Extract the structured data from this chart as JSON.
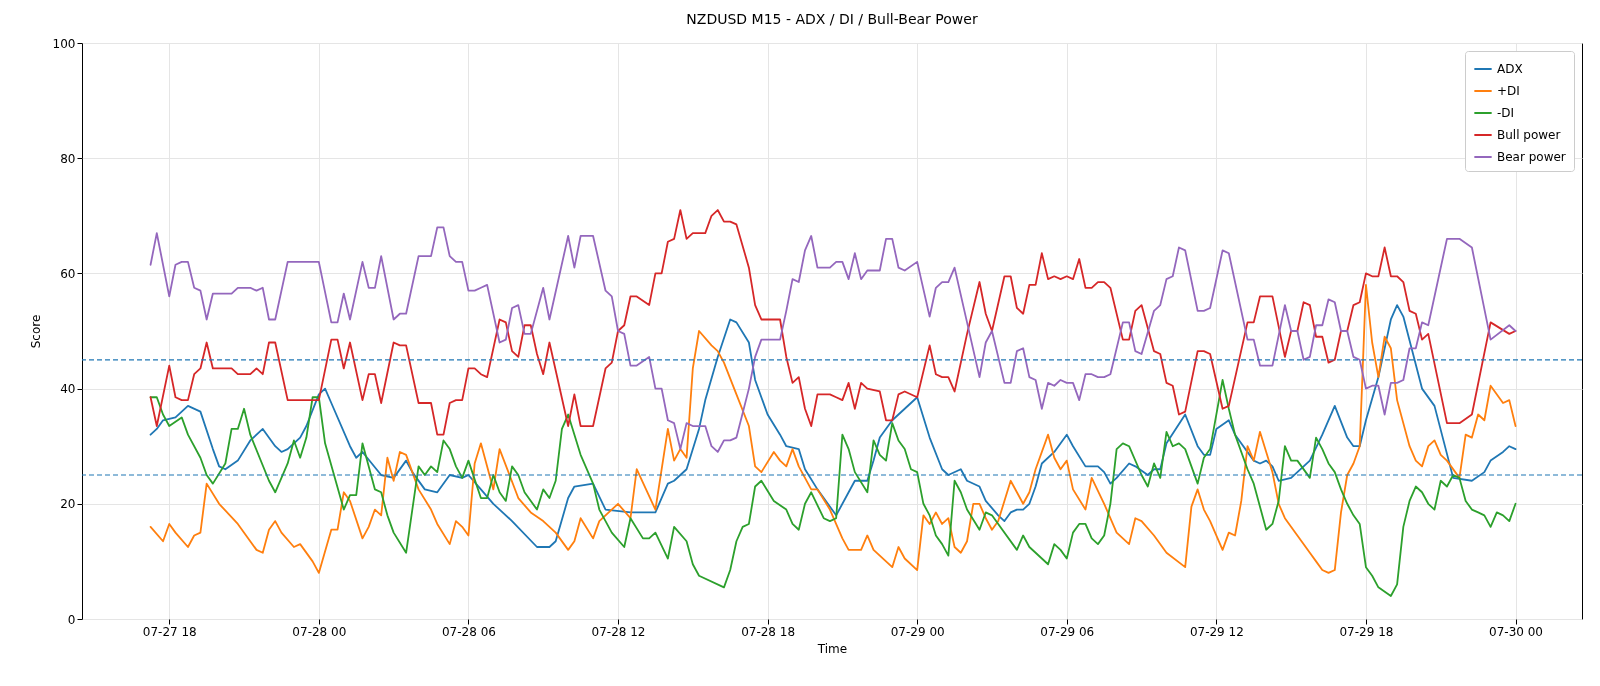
{
  "chart_data": {
    "type": "line",
    "title": "NZDUSD M15 - ADX / DI / Bull-Bear Power",
    "xlabel": "Time",
    "ylabel": "Score",
    "xlim": [
      "--07-27T14:30",
      "--07-30T02:40"
    ],
    "xticks": [
      {
        "value": "--07-27T18:00",
        "label": "07-27 18"
      },
      {
        "value": "--07-28T00:00",
        "label": "07-28 00"
      },
      {
        "value": "--07-28T06:00",
        "label": "07-28 06"
      },
      {
        "value": "--07-28T12:00",
        "label": "07-28 12"
      },
      {
        "value": "--07-28T18:00",
        "label": "07-28 18"
      },
      {
        "value": "--07-29T00:00",
        "label": "07-29 00"
      },
      {
        "value": "--07-29T06:00",
        "label": "07-29 06"
      },
      {
        "value": "--07-29T12:00",
        "label": "07-29 12"
      },
      {
        "value": "--07-29T18:00",
        "label": "07-29 18"
      },
      {
        "value": "--07-30T00:00",
        "label": "07-30 00"
      }
    ],
    "ylim": [
      0,
      100
    ],
    "yticks": [
      0,
      20,
      40,
      60,
      80,
      100
    ],
    "grid": true,
    "legend": "top right",
    "ref_lines": [
      {
        "axis": "y",
        "value": 45,
        "color": "#1f77b4",
        "line_style": "dashed"
      },
      {
        "axis": "y",
        "value": 25,
        "color": "#1f77b4",
        "line_style": "dashed"
      }
    ],
    "series": [
      {
        "name": "ADX",
        "color": "#1f77b4",
        "x": [
          "--07-27T17:15",
          "--07-27T17:30",
          "--07-27T17:45",
          "--07-27T18:15",
          "--07-27T18:45",
          "--07-27T19:15",
          "--07-27T19:45",
          "--07-27T20:00",
          "--07-27T20:15",
          "--07-27T20:45",
          "--07-27T21:15",
          "--07-27T21:45",
          "--07-27T22:15",
          "--07-27T22:30",
          "--07-27T22:45",
          "--07-27T23:15",
          "--07-27T23:30",
          "--07-28T00:00",
          "--07-28T00:15",
          "--07-28T00:30",
          "--07-28T01:15",
          "--07-28T01:30",
          "--07-28T01:45",
          "--07-28T02:30",
          "--07-28T03:00",
          "--07-28T03:30",
          "--07-28T03:45",
          "--07-28T04:15",
          "--07-28T04:45",
          "--07-28T05:15",
          "--07-28T05:45",
          "--07-28T06:00",
          "--07-28T06:30",
          "--07-28T07:00",
          "--07-28T07:15",
          "--07-28T07:45",
          "--07-28T08:45",
          "--07-28T09:15",
          "--07-28T09:30",
          "--07-28T10:00",
          "--07-28T10:15",
          "--07-28T11:00",
          "--07-28T11:30",
          "--07-28T12:30",
          "--07-28T13:00",
          "--07-28T13:30",
          "--07-28T14:00",
          "--07-28T14:15",
          "--07-28T14:45",
          "--07-28T15:15",
          "--07-28T15:30",
          "--07-28T16:00",
          "--07-28T16:30",
          "--07-28T16:45",
          "--07-28T17:15",
          "--07-28T17:30",
          "--07-28T18:00",
          "--07-28T18:30",
          "--07-28T18:45",
          "--07-28T19:15",
          "--07-28T19:30",
          "--07-28T20:00",
          "--07-28T20:45",
          "--07-28T21:15",
          "--07-28T21:30",
          "--07-28T22:00",
          "--07-28T22:15",
          "--07-28T22:30",
          "--07-28T23:00",
          "--07-28T23:30",
          "--07-29T00:00",
          "--07-29T00:30",
          "--07-29T01:00",
          "--07-29T01:15",
          "--07-29T01:45",
          "--07-29T02:00",
          "--07-29T02:30",
          "--07-29T02:45",
          "--07-29T03:15",
          "--07-29T03:30",
          "--07-29T03:45",
          "--07-29T04:00",
          "--07-29T04:15",
          "--07-29T04:30",
          "--07-29T04:45",
          "--07-29T05:00",
          "--07-29T05:30",
          "--07-29T06:00",
          "--07-29T06:15",
          "--07-29T06:45",
          "--07-29T07:15",
          "--07-29T07:30",
          "--07-29T07:45",
          "--07-29T08:00",
          "--07-29T08:30",
          "--07-29T08:45",
          "--07-29T09:15",
          "--07-29T09:30",
          "--07-29T09:45",
          "--07-29T10:00",
          "--07-29T10:45",
          "--07-29T11:15",
          "--07-29T11:30",
          "--07-29T11:45",
          "--07-29T12:00",
          "--07-29T12:30",
          "--07-29T12:45",
          "--07-29T13:30",
          "--07-29T13:45",
          "--07-29T14:00",
          "--07-29T14:15",
          "--07-29T14:30",
          "--07-29T15:00",
          "--07-29T15:15",
          "--07-29T15:45",
          "--07-29T16:15",
          "--07-29T16:45",
          "--07-29T17:15",
          "--07-29T17:30",
          "--07-29T17:45",
          "--07-29T18:00",
          "--07-29T18:30",
          "--07-29T19:00",
          "--07-29T19:15",
          "--07-29T19:30",
          "--07-29T20:15",
          "--07-29T20:45",
          "--07-29T21:30",
          "--07-29T22:15",
          "--07-29T22:45",
          "--07-29T23:00",
          "--07-29T23:30",
          "--07-29T23:45",
          "--07-30T00:00"
        ],
        "values": [
          32,
          33,
          34.5,
          35,
          37,
          36,
          29.5,
          26.5,
          26,
          27.5,
          31,
          33,
          30,
          29,
          29.5,
          31.5,
          33.5,
          39,
          40,
          37.5,
          30,
          28,
          29,
          25,
          24.5,
          27.5,
          25.5,
          22.5,
          22,
          25,
          24.5,
          25,
          22.5,
          20,
          19,
          17,
          12.5,
          12.5,
          13.5,
          21,
          23,
          23.5,
          19,
          18.5,
          18.5,
          18.5,
          23.5,
          24,
          26,
          33,
          38,
          45.5,
          52,
          51.5,
          48,
          41.5,
          35.5,
          32,
          30,
          29.5,
          26,
          22.5,
          18,
          22,
          24,
          24,
          27.5,
          31.5,
          34.5,
          36.5,
          38.5,
          31.5,
          26,
          25,
          26,
          24,
          23,
          20.5,
          18,
          17,
          18.5,
          19,
          19,
          20,
          23,
          27,
          29,
          32,
          30,
          26.5,
          26.5,
          25.5,
          23.5,
          24.5,
          27,
          26.5,
          25,
          26,
          26,
          30.5,
          35.5,
          30,
          28.5,
          28.5,
          33,
          34.5,
          32,
          27.5,
          27,
          27.5,
          26.5,
          24,
          24.5,
          25.5,
          27.5,
          32,
          37,
          31.5,
          30,
          30,
          34.5,
          42,
          52,
          54.5,
          52.5,
          40,
          37,
          24.5,
          24,
          25.5,
          27.5,
          29,
          30,
          29.5
        ]
      },
      {
        "name": "+DI",
        "color": "#ff7f0e",
        "x": [
          "--07-27T17:15",
          "--07-27T17:45",
          "--07-27T18:00",
          "--07-27T18:15",
          "--07-27T18:45",
          "--07-27T19:00",
          "--07-27T19:15",
          "--07-27T19:30",
          "--07-27T20:00",
          "--07-27T20:45",
          "--07-27T21:30",
          "--07-27T21:45",
          "--07-27T22:00",
          "--07-27T22:15",
          "--07-27T22:30",
          "--07-27T23:00",
          "--07-27T23:15",
          "--07-27T23:45",
          "--07-28T00:00",
          "--07-28T00:30",
          "--07-28T00:45",
          "--07-28T01:00",
          "--07-28T01:15",
          "--07-28T01:45",
          "--07-28T02:00",
          "--07-28T02:15",
          "--07-28T02:30",
          "--07-28T02:45",
          "--07-28T03:00",
          "--07-28T03:15",
          "--07-28T03:30",
          "--07-28T04:00",
          "--07-28T04:30",
          "--07-28T04:45",
          "--07-28T05:15",
          "--07-28T05:30",
          "--07-28T05:45",
          "--07-28T06:00",
          "--07-28T06:15",
          "--07-28T06:30",
          "--07-28T07:00",
          "--07-28T07:15",
          "--07-28T08:00",
          "--07-28T08:30",
          "--07-28T09:00",
          "--07-28T09:30",
          "--07-28T10:00",
          "--07-28T10:15",
          "--07-28T10:30",
          "--07-28T11:00",
          "--07-28T11:15",
          "--07-28T12:00",
          "--07-28T12:30",
          "--07-28T12:45",
          "--07-28T13:30",
          "--07-28T14:00",
          "--07-28T14:15",
          "--07-28T14:30",
          "--07-28T14:45",
          "--07-28T15:00",
          "--07-28T15:15",
          "--07-28T15:45",
          "--07-28T16:00",
          "--07-28T16:15",
          "--07-28T16:45",
          "--07-28T17:15",
          "--07-28T17:30",
          "--07-28T17:45",
          "--07-28T18:15",
          "--07-28T18:30",
          "--07-28T18:45",
          "--07-28T19:00",
          "--07-28T19:15",
          "--07-28T19:45",
          "--07-28T20:00",
          "--07-28T20:30",
          "--07-28T21:00",
          "--07-28T21:15",
          "--07-28T21:45",
          "--07-28T22:00",
          "--07-28T22:15",
          "--07-28T22:30",
          "--07-28T22:45",
          "--07-28T23:00",
          "--07-28T23:15",
          "--07-28T23:30",
          "--07-29T00:00",
          "--07-29T00:15",
          "--07-29T00:30",
          "--07-29T00:45",
          "--07-29T01:00",
          "--07-29T01:15",
          "--07-29T01:30",
          "--07-29T01:45",
          "--07-29T02:00",
          "--07-29T02:15",
          "--07-29T02:30",
          "--07-29T02:45",
          "--07-29T03:00",
          "--07-29T03:15",
          "--07-29T03:45",
          "--07-29T04:00",
          "--07-29T04:15",
          "--07-29T04:30",
          "--07-29T04:45",
          "--07-29T05:15",
          "--07-29T05:30",
          "--07-29T05:45",
          "--07-29T06:00",
          "--07-29T06:15",
          "--07-29T06:45",
          "--07-29T07:00",
          "--07-29T07:30",
          "--07-29T08:00",
          "--07-29T08:30",
          "--07-29T08:45",
          "--07-29T09:00",
          "--07-29T09:30",
          "--07-29T10:00",
          "--07-29T10:45",
          "--07-29T11:00",
          "--07-29T11:15",
          "--07-29T11:30",
          "--07-29T11:45",
          "--07-29T12:15",
          "--07-29T12:30",
          "--07-29T12:45",
          "--07-29T13:00",
          "--07-29T13:15",
          "--07-29T13:30",
          "--07-29T13:45",
          "--07-29T14:00",
          "--07-29T14:15",
          "--07-29T14:30",
          "--07-29T14:45",
          "--07-29T15:15",
          "--07-29T15:45",
          "--07-29T16:00",
          "--07-29T16:15",
          "--07-29T16:30",
          "--07-29T16:45",
          "--07-29T17:00",
          "--07-29T17:15",
          "--07-29T17:30",
          "--07-29T17:45",
          "--07-29T18:00",
          "--07-29T18:15",
          "--07-29T18:30",
          "--07-29T18:45",
          "--07-29T19:00",
          "--07-29T19:15",
          "--07-29T19:45",
          "--07-29T20:00",
          "--07-29T20:15",
          "--07-29T20:30",
          "--07-29T20:45",
          "--07-29T21:00",
          "--07-29T21:15",
          "--07-29T21:45",
          "--07-29T22:00",
          "--07-29T22:15",
          "--07-29T22:30",
          "--07-29T22:45",
          "--07-29T23:00",
          "--07-29T23:30",
          "--07-29T23:45",
          "--07-30T00:00"
        ],
        "values": [
          16,
          13.5,
          16.5,
          15,
          12.5,
          14.5,
          15,
          23.5,
          20,
          16.5,
          12,
          11.5,
          15.5,
          17,
          15,
          12.5,
          13,
          10,
          8,
          15.5,
          15.5,
          22,
          20.5,
          14,
          16,
          19,
          18,
          28,
          24,
          29,
          28.5,
          22.5,
          19,
          16.5,
          13,
          17,
          16,
          14.5,
          27,
          30.5,
          22.5,
          29.5,
          21,
          18.5,
          17,
          15,
          12,
          13.5,
          17.5,
          14,
          17,
          20,
          17.5,
          26,
          19,
          33,
          27.5,
          29.5,
          28,
          43.5,
          50,
          47.5,
          46.5,
          44.5,
          39,
          33.5,
          26.5,
          25.5,
          29,
          27.5,
          26.5,
          29.5,
          26.5,
          22.5,
          22.5,
          19,
          14,
          12,
          12,
          14.5,
          12,
          11,
          10,
          9,
          12.5,
          10.5,
          8.5,
          18,
          16.5,
          18.5,
          16.5,
          17.5,
          12.5,
          11.5,
          13.5,
          20,
          20,
          17.5,
          15.5,
          17,
          24,
          22,
          20,
          22,
          26,
          32,
          28,
          26,
          27.5,
          22.5,
          19,
          24.5,
          20,
          15,
          13,
          17.5,
          17,
          14.5,
          11.5,
          9,
          19.5,
          22.5,
          19,
          17,
          12,
          15,
          14.5,
          20.5,
          30,
          27.5,
          32.5,
          29,
          25.5,
          20,
          17.5,
          14.5,
          11.5,
          10,
          8.5,
          8,
          8.5,
          18.5,
          25,
          27,
          30,
          58,
          48,
          42,
          49,
          47,
          38,
          30,
          27.5,
          26.5,
          30,
          31,
          28.5,
          27.5,
          24.5,
          32,
          31.5,
          35.5,
          34.5,
          40.5,
          37.5,
          38,
          33.5
        ]
      },
      {
        "name": "-DI",
        "color": "#2ca02c",
        "x": [
          "--07-27T17:15",
          "--07-27T17:30",
          "--07-27T17:45",
          "--07-27T18:00",
          "--07-27T18:30",
          "--07-27T18:45",
          "--07-27T19:15",
          "--07-27T19:30",
          "--07-27T19:45",
          "--07-27T20:15",
          "--07-27T20:30",
          "--07-27T20:45",
          "--07-27T21:00",
          "--07-27T21:15",
          "--07-27T22:00",
          "--07-27T22:15",
          "--07-27T22:45",
          "--07-27T23:00",
          "--07-27T23:15",
          "--07-27T23:30",
          "--07-27T23:45",
          "--07-28T00:00",
          "--07-28T00:15",
          "--07-28T01:00",
          "--07-28T01:15",
          "--07-28T01:30",
          "--07-28T01:45",
          "--07-28T02:15",
          "--07-28T02:30",
          "--07-28T02:45",
          "--07-28T03:00",
          "--07-28T03:30",
          "--07-28T04:00",
          "--07-28T04:15",
          "--07-28T04:30",
          "--07-28T04:45",
          "--07-28T05:00",
          "--07-28T05:15",
          "--07-28T05:30",
          "--07-28T05:45",
          "--07-28T06:00",
          "--07-28T06:30",
          "--07-28T06:45",
          "--07-28T07:00",
          "--07-28T07:15",
          "--07-28T07:30",
          "--07-28T07:45",
          "--07-28T08:00",
          "--07-28T08:15",
          "--07-28T08:45",
          "--07-28T09:00",
          "--07-28T09:15",
          "--07-28T09:30",
          "--07-28T09:45",
          "--07-28T10:00",
          "--07-28T10:30",
          "--07-28T11:00",
          "--07-28T11:15",
          "--07-28T11:45",
          "--07-28T12:15",
          "--07-28T12:30",
          "--07-28T13:00",
          "--07-28T13:15",
          "--07-28T13:30",
          "--07-28T14:00",
          "--07-28T14:15",
          "--07-28T14:45",
          "--07-28T15:00",
          "--07-28T15:15",
          "--07-28T16:15",
          "--07-28T16:30",
          "--07-28T16:45",
          "--07-28T17:00",
          "--07-28T17:15",
          "--07-28T17:30",
          "--07-28T17:45",
          "--07-28T18:15",
          "--07-28T18:45",
          "--07-28T19:00",
          "--07-28T19:15",
          "--07-28T19:30",
          "--07-28T19:45",
          "--07-28T20:15",
          "--07-28T20:30",
          "--07-28T20:45",
          "--07-28T21:00",
          "--07-28T21:15",
          "--07-28T21:30",
          "--07-28T22:00",
          "--07-28T22:15",
          "--07-28T22:30",
          "--07-28T22:45",
          "--07-28T23:00",
          "--07-28T23:15",
          "--07-28T23:30",
          "--07-28T23:45",
          "--07-29T00:00",
          "--07-29T00:15",
          "--07-29T00:30",
          "--07-29T00:45",
          "--07-29T01:00",
          "--07-29T01:15",
          "--07-29T01:30",
          "--07-29T01:45",
          "--07-29T02:00",
          "--07-29T02:30",
          "--07-29T02:45",
          "--07-29T03:00",
          "--07-29T03:15",
          "--07-29T04:00",
          "--07-29T04:15",
          "--07-29T04:30",
          "--07-29T05:15",
          "--07-29T05:30",
          "--07-29T05:45",
          "--07-29T06:00",
          "--07-29T06:15",
          "--07-29T06:30",
          "--07-29T06:45",
          "--07-29T07:00",
          "--07-29T07:15",
          "--07-29T07:30",
          "--07-29T07:45",
          "--07-29T08:00",
          "--07-29T08:15",
          "--07-29T08:30",
          "--07-29T09:00",
          "--07-29T09:15",
          "--07-29T09:30",
          "--07-29T09:45",
          "--07-29T10:00",
          "--07-29T10:15",
          "--07-29T10:30",
          "--07-29T10:45",
          "--07-29T11:15",
          "--07-29T11:30",
          "--07-29T11:45",
          "--07-29T12:15",
          "--07-29T12:30",
          "--07-29T12:45",
          "--07-29T13:15",
          "--07-29T13:30",
          "--07-29T14:00",
          "--07-29T14:15",
          "--07-29T14:30",
          "--07-29T14:45",
          "--07-29T15:00",
          "--07-29T15:15",
          "--07-29T15:45",
          "--07-29T16:00",
          "--07-29T16:15",
          "--07-29T16:30",
          "--07-29T16:45",
          "--07-29T17:00",
          "--07-29T17:15",
          "--07-29T17:30",
          "--07-29T17:45",
          "--07-29T18:00",
          "--07-29T18:15",
          "--07-29T18:30",
          "--07-29T19:00",
          "--07-29T19:15",
          "--07-29T19:30",
          "--07-29T19:45",
          "--07-29T20:00",
          "--07-29T20:15",
          "--07-29T20:30",
          "--07-29T20:45",
          "--07-29T21:00",
          "--07-29T21:15",
          "--07-29T21:30",
          "--07-29T21:45",
          "--07-29T22:00",
          "--07-29T22:15",
          "--07-29T22:30",
          "--07-29T22:45",
          "--07-29T23:00",
          "--07-29T23:15",
          "--07-29T23:30",
          "--07-29T23:45",
          "--07-30T00:00"
        ],
        "values": [
          38.5,
          38.5,
          35.5,
          33.5,
          35,
          32,
          28,
          25,
          23.5,
          27,
          33,
          33,
          36.5,
          32,
          24,
          22,
          27,
          31,
          28,
          31.5,
          38.5,
          38.5,
          30.5,
          19,
          21.5,
          21.5,
          30.5,
          22.5,
          22,
          18,
          15,
          11.5,
          26.5,
          25,
          26.5,
          25.5,
          31,
          29.5,
          26.5,
          24.5,
          27.5,
          21,
          21,
          25,
          22,
          20.5,
          26.5,
          25,
          22,
          19,
          22.5,
          21,
          24,
          33,
          35.5,
          28.5,
          23.5,
          19,
          15,
          12.5,
          17.5,
          14,
          14,
          15,
          10.5,
          16,
          13.5,
          9.5,
          7.5,
          5.5,
          8.5,
          13.5,
          16,
          16.5,
          23,
          24,
          20.5,
          19,
          16.5,
          15.5,
          20,
          22,
          17.5,
          17,
          17.5,
          32,
          29.5,
          25.5,
          22,
          31,
          28.5,
          27.5,
          34,
          31,
          29.5,
          26,
          25.5,
          20,
          18,
          14.5,
          13,
          11,
          24,
          22,
          19,
          15.5,
          18.5,
          18,
          16.5,
          12,
          14.5,
          12.5,
          9.5,
          13,
          12,
          10.5,
          15,
          16.5,
          16.5,
          14,
          13,
          14.5,
          20,
          29.5,
          30.5,
          30,
          25,
          23,
          27,
          24.5,
          32.5,
          30,
          30.5,
          29.5,
          23.5,
          28,
          29.5,
          41.5,
          36.5,
          32,
          26,
          23.5,
          15.5,
          16.5,
          20.5,
          30,
          27.5,
          27.5,
          24.5,
          31.5,
          29.5,
          27,
          25.5,
          22.5,
          20,
          18,
          16.5,
          9,
          7.5,
          5.5,
          4,
          6,
          16,
          20.5,
          23,
          22,
          20,
          19,
          24,
          23,
          25,
          24.5,
          20.5,
          19,
          18.5,
          18,
          16,
          18.5,
          18,
          17,
          20
        ]
      },
      {
        "name": "Bull power",
        "color": "#d62728",
        "x": [
          "--07-27T17:15",
          "--07-27T17:30",
          "--07-27T18:00",
          "--07-27T18:15",
          "--07-27T18:30",
          "--07-27T18:45",
          "--07-27T19:00",
          "--07-27T19:15",
          "--07-27T19:30",
          "--07-27T19:45",
          "--07-27T20:30",
          "--07-27T20:45",
          "--07-27T21:15",
          "--07-27T21:30",
          "--07-27T21:45",
          "--07-27T22:00",
          "--07-27T22:15",
          "--07-27T22:45",
          "--07-28T00:00",
          "--07-28T00:30",
          "--07-28T00:45",
          "--07-28T01:00",
          "--07-28T01:15",
          "--07-28T01:45",
          "--07-28T02:00",
          "--07-28T02:15",
          "--07-28T02:30",
          "--07-28T03:00",
          "--07-28T03:15",
          "--07-28T03:30",
          "--07-28T04:00",
          "--07-28T04:30",
          "--07-28T04:45",
          "--07-28T05:00",
          "--07-28T05:15",
          "--07-28T05:30",
          "--07-28T05:45",
          "--07-28T06:00",
          "--07-28T06:15",
          "--07-28T06:30",
          "--07-28T06:45",
          "--07-28T07:15",
          "--07-28T07:30",
          "--07-28T07:45",
          "--07-28T08:00",
          "--07-28T08:15",
          "--07-28T08:30",
          "--07-28T08:45",
          "--07-28T09:00",
          "--07-28T09:15",
          "--07-28T10:00",
          "--07-28T10:15",
          "--07-28T10:30",
          "--07-28T11:00",
          "--07-28T11:30",
          "--07-28T11:45",
          "--07-28T12:00",
          "--07-28T12:15",
          "--07-28T12:30",
          "--07-28T12:45",
          "--07-28T13:15",
          "--07-28T13:30",
          "--07-28T13:45",
          "--07-28T14:00",
          "--07-28T14:15",
          "--07-28T14:30",
          "--07-28T14:45",
          "--07-28T15:00",
          "--07-28T15:30",
          "--07-28T15:45",
          "--07-28T16:00",
          "--07-28T16:15",
          "--07-28T16:30",
          "--07-28T16:45",
          "--07-28T17:15",
          "--07-28T17:30",
          "--07-28T17:45",
          "--07-28T18:30",
          "--07-28T18:45",
          "--07-28T19:00",
          "--07-28T19:15",
          "--07-28T19:30",
          "--07-28T19:45",
          "--07-28T20:00",
          "--07-28T20:30",
          "--07-28T20:45",
          "--07-28T21:00",
          "--07-28T21:15",
          "--07-28T21:30",
          "--07-28T21:45",
          "--07-28T22:00",
          "--07-28T22:30",
          "--07-28T22:45",
          "--07-28T23:00",
          "--07-28T23:15",
          "--07-28T23:30",
          "--07-29T00:00",
          "--07-29T00:30",
          "--07-29T00:45",
          "--07-29T01:00",
          "--07-29T01:15",
          "--07-29T01:30",
          "--07-29T02:00",
          "--07-29T02:30",
          "--07-29T02:45",
          "--07-29T03:00",
          "--07-29T03:30",
          "--07-29T03:45",
          "--07-29T04:00",
          "--07-29T04:15",
          "--07-29T04:30",
          "--07-29T04:45",
          "--07-29T05:00",
          "--07-29T05:15",
          "--07-29T05:30",
          "--07-29T05:45",
          "--07-29T06:00",
          "--07-29T06:15",
          "--07-29T06:30",
          "--07-29T06:45",
          "--07-29T07:00",
          "--07-29T07:15",
          "--07-29T07:30",
          "--07-29T07:45",
          "--07-29T08:15",
          "--07-29T08:30",
          "--07-29T08:45",
          "--07-29T09:00",
          "--07-29T09:30",
          "--07-29T09:45",
          "--07-29T10:00",
          "--07-29T10:15",
          "--07-29T10:30",
          "--07-29T10:45",
          "--07-29T11:15",
          "--07-29T11:30",
          "--07-29T11:45",
          "--07-29T12:15",
          "--07-29T12:30",
          "--07-29T13:15",
          "--07-29T13:30",
          "--07-29T13:45",
          "--07-29T14:15",
          "--07-29T14:45",
          "--07-29T15:00",
          "--07-29T15:15",
          "--07-29T15:30",
          "--07-29T15:45",
          "--07-29T16:00",
          "--07-29T16:15",
          "--07-29T16:30",
          "--07-29T16:45",
          "--07-29T17:00",
          "--07-29T17:15",
          "--07-29T17:30",
          "--07-29T17:45",
          "--07-29T18:00",
          "--07-29T18:15",
          "--07-29T18:30",
          "--07-29T18:45",
          "--07-29T19:00",
          "--07-29T19:15",
          "--07-29T19:30",
          "--07-29T19:45",
          "--07-29T20:00",
          "--07-29T20:15",
          "--07-29T20:30",
          "--07-29T21:15",
          "--07-29T21:45",
          "--07-29T22:15",
          "--07-29T23:00",
          "--07-29T23:45",
          "--07-30T00:00"
        ],
        "values": [
          38.5,
          33.5,
          44,
          38.5,
          38,
          38,
          42.5,
          43.5,
          48,
          43.5,
          43.5,
          42.5,
          42.5,
          43.5,
          42.5,
          48,
          48,
          38,
          38,
          48.5,
          48.5,
          43.5,
          48,
          38,
          42.5,
          42.5,
          37.5,
          48,
          47.5,
          47.5,
          37.5,
          37.5,
          32,
          32,
          37.5,
          38,
          38,
          43.5,
          43.5,
          42.5,
          42,
          52,
          51.5,
          46.5,
          45.5,
          51,
          51,
          46,
          42.5,
          48,
          33.5,
          39,
          33.5,
          33.5,
          43.5,
          44.5,
          50,
          51,
          56,
          56,
          54.5,
          60,
          60,
          65.5,
          66,
          71,
          66,
          67,
          67,
          70,
          71,
          69,
          69,
          68.5,
          61,
          54.5,
          52,
          52,
          45.5,
          41,
          42,
          36.5,
          33.5,
          39,
          39,
          38.5,
          38,
          41,
          36.5,
          41,
          40,
          39.5,
          34.5,
          34.5,
          39,
          39.5,
          38.5,
          47.5,
          42.5,
          42,
          42,
          39.5,
          49.5,
          58.5,
          53,
          50,
          59.5,
          59.5,
          54,
          53,
          58,
          58,
          63.5,
          59,
          59.5,
          59,
          59.5,
          59,
          62.5,
          57.5,
          57.5,
          58.5,
          58.5,
          57.5,
          48.5,
          48.5,
          53.5,
          54.5,
          46.5,
          46,
          41,
          40.5,
          35.5,
          36,
          46.5,
          46.5,
          46,
          36.5,
          37,
          51.5,
          51.5,
          56,
          56,
          45.5,
          50,
          50,
          55,
          54.5,
          49,
          49,
          44.5,
          45,
          50,
          50,
          54.5,
          55,
          60,
          59.5,
          59.5,
          64.5,
          59.5,
          59.5,
          58.5,
          53.5,
          53,
          48.5,
          49.5,
          34,
          34,
          35.5,
          51.5,
          49.5,
          50
        ]
      },
      {
        "name": "Bear power",
        "color": "#9467bd",
        "x": [
          "--07-27T17:15",
          "--07-27T17:30",
          "--07-27T18:00",
          "--07-27T18:15",
          "--07-27T18:30",
          "--07-27T18:45",
          "--07-27T19:00",
          "--07-27T19:15",
          "--07-27T19:30",
          "--07-27T19:45",
          "--07-27T20:30",
          "--07-27T20:45",
          "--07-27T21:15",
          "--07-27T21:30",
          "--07-27T21:45",
          "--07-27T22:00",
          "--07-27T22:15",
          "--07-27T22:45",
          "--07-28T00:00",
          "--07-28T00:30",
          "--07-28T00:45",
          "--07-28T01:00",
          "--07-28T01:15",
          "--07-28T01:45",
          "--07-28T02:00",
          "--07-28T02:15",
          "--07-28T02:30",
          "--07-28T03:00",
          "--07-28T03:15",
          "--07-28T03:30",
          "--07-28T04:00",
          "--07-28T04:30",
          "--07-28T04:45",
          "--07-28T05:00",
          "--07-28T05:15",
          "--07-28T05:30",
          "--07-28T05:45",
          "--07-28T06:00",
          "--07-28T06:15",
          "--07-28T06:30",
          "--07-28T06:45",
          "--07-28T07:15",
          "--07-28T07:30",
          "--07-28T07:45",
          "--07-28T08:00",
          "--07-28T08:15",
          "--07-28T08:30",
          "--07-28T09:00",
          "--07-28T09:15",
          "--07-28T10:00",
          "--07-28T10:15",
          "--07-28T10:30",
          "--07-28T11:00",
          "--07-28T11:30",
          "--07-28T11:45",
          "--07-28T12:00",
          "--07-28T12:15",
          "--07-28T12:30",
          "--07-28T12:45",
          "--07-28T13:15",
          "--07-28T13:30",
          "--07-28T13:45",
          "--07-28T14:00",
          "--07-28T14:15",
          "--07-28T14:30",
          "--07-28T14:45",
          "--07-28T15:00",
          "--07-28T15:30",
          "--07-28T15:45",
          "--07-28T16:00",
          "--07-28T16:15",
          "--07-28T16:30",
          "--07-28T16:45",
          "--07-28T17:15",
          "--07-28T17:30",
          "--07-28T17:45",
          "--07-28T18:30",
          "--07-28T18:45",
          "--07-28T19:00",
          "--07-28T19:15",
          "--07-28T19:30",
          "--07-28T19:45",
          "--07-28T20:00",
          "--07-28T20:30",
          "--07-28T20:45",
          "--07-28T21:00",
          "--07-28T21:15",
          "--07-28T21:30",
          "--07-28T21:45",
          "--07-28T22:00",
          "--07-28T22:30",
          "--07-28T22:45",
          "--07-28T23:00",
          "--07-28T23:15",
          "--07-28T23:30",
          "--07-29T00:00",
          "--07-29T00:30",
          "--07-29T00:45",
          "--07-29T01:00",
          "--07-29T01:15",
          "--07-29T01:30",
          "--07-29T02:00",
          "--07-29T02:30",
          "--07-29T02:45",
          "--07-29T03:00",
          "--07-29T03:30",
          "--07-29T03:45",
          "--07-29T04:00",
          "--07-29T04:15",
          "--07-29T04:30",
          "--07-29T04:45",
          "--07-29T05:00",
          "--07-29T05:15",
          "--07-29T05:30",
          "--07-29T05:45",
          "--07-29T06:00",
          "--07-29T06:15",
          "--07-29T06:30",
          "--07-29T06:45",
          "--07-29T07:00",
          "--07-29T07:15",
          "--07-29T07:30",
          "--07-29T07:45",
          "--07-29T08:15",
          "--07-29T08:30",
          "--07-29T08:45",
          "--07-29T09:00",
          "--07-29T09:30",
          "--07-29T09:45",
          "--07-29T10:00",
          "--07-29T10:15",
          "--07-29T10:30",
          "--07-29T10:45",
          "--07-29T11:15",
          "--07-29T11:30",
          "--07-29T11:45",
          "--07-29T12:15",
          "--07-29T12:30",
          "--07-29T13:15",
          "--07-29T13:30",
          "--07-29T13:45",
          "--07-29T14:15",
          "--07-29T14:45",
          "--07-29T15:00",
          "--07-29T15:15",
          "--07-29T15:30",
          "--07-29T15:45",
          "--07-29T16:00",
          "--07-29T16:15",
          "--07-29T16:30",
          "--07-29T16:45",
          "--07-29T17:00",
          "--07-29T17:15",
          "--07-29T17:30",
          "--07-29T17:45",
          "--07-29T18:00",
          "--07-29T18:15",
          "--07-29T18:30",
          "--07-29T18:45",
          "--07-29T19:00",
          "--07-29T19:15",
          "--07-29T19:30",
          "--07-29T19:45",
          "--07-29T20:00",
          "--07-29T20:15",
          "--07-29T20:30",
          "--07-29T21:15",
          "--07-29T21:45",
          "--07-29T22:15",
          "--07-29T23:00",
          "--07-29T23:45",
          "--07-30T00:00"
        ],
        "values": [
          61.5,
          67,
          56,
          61.5,
          62,
          62,
          57.5,
          57,
          52,
          56.5,
          56.5,
          57.5,
          57.5,
          57,
          57.5,
          52,
          52,
          62,
          62,
          51.5,
          51.5,
          56.5,
          52,
          62,
          57.5,
          57.5,
          63,
          52,
          53,
          53,
          63,
          63,
          68,
          68,
          63,
          62,
          62,
          57,
          57,
          57.5,
          58,
          48,
          48.5,
          54,
          54.5,
          49.5,
          49.5,
          57.5,
          52,
          66.5,
          61,
          66.5,
          66.5,
          57,
          56,
          50,
          49.5,
          44,
          44,
          45.5,
          40,
          40,
          34.5,
          34,
          29.5,
          34,
          33.5,
          33.5,
          30,
          29,
          31,
          31,
          31.5,
          40,
          45.5,
          48.5,
          48.5,
          53.5,
          59,
          58.5,
          64,
          66.5,
          61,
          61,
          62,
          62,
          59,
          63.5,
          59,
          60.5,
          60.5,
          66,
          66,
          61,
          60.5,
          62,
          52.5,
          57.5,
          58.5,
          58.5,
          61,
          51.5,
          42,
          48,
          50,
          41,
          41,
          46.5,
          47,
          42,
          41.5,
          36.5,
          41,
          40.5,
          41.5,
          41,
          41,
          38,
          42.5,
          42.5,
          42,
          42,
          42.5,
          51.5,
          51.5,
          46.5,
          46,
          53.5,
          54.5,
          59,
          59.5,
          64.5,
          64,
          53.5,
          53.5,
          54,
          64,
          63.5,
          48.5,
          48.5,
          44,
          44,
          54.5,
          50,
          50,
          45,
          45.5,
          51,
          51,
          55.5,
          55,
          50,
          50,
          45.5,
          45,
          40,
          40.5,
          40.5,
          35.5,
          41,
          41,
          41.5,
          47,
          47,
          51.5,
          51,
          66,
          66,
          64.5,
          48.5,
          51,
          50
        ]
      }
    ]
  }
}
